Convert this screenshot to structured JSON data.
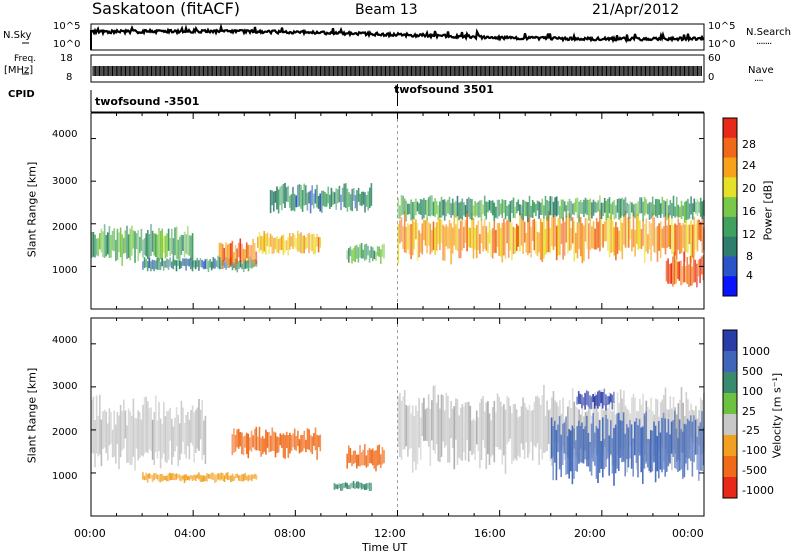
{
  "header": {
    "station": "Saskatoon (fitACF)",
    "beam": "Beam 13",
    "date": "21/Apr/2012"
  },
  "sky_panel": {
    "left_label": "N.Sky",
    "right_label": "N.Search",
    "right_dots": "·······",
    "left_ticks": [
      "10^5",
      "10^0"
    ],
    "right_ticks": [
      "10^5",
      "10^0"
    ]
  },
  "freq_panel": {
    "left_label_1": "Freq.",
    "left_label_2": "[MHz]",
    "right_label": "Nave",
    "right_dots": "····",
    "left_ticks": [
      "18",
      "8"
    ],
    "right_ticks": [
      "60",
      "0"
    ]
  },
  "cpid": {
    "label": "CPID",
    "segments": [
      {
        "name": "twofsound -3501",
        "start_hour": 0
      },
      {
        "name": "twofsound 3501",
        "start_hour": 12
      }
    ]
  },
  "chart_data": [
    {
      "type": "heatmap",
      "title": "Power",
      "ylabel": "Slant Range [km]",
      "xlabel": "",
      "xlim": [
        0,
        24
      ],
      "ylim": [
        0,
        4600
      ],
      "y_ticks": [
        1000,
        2000,
        3000,
        4000
      ],
      "colorbar": {
        "label": "Power [dB]",
        "ticks": [
          4,
          8,
          12,
          16,
          20,
          24,
          28
        ],
        "range": [
          0,
          32
        ],
        "colors": [
          "#0a14ff",
          "#2a55c8",
          "#2f7e6d",
          "#3fa060",
          "#7ac84a",
          "#e6e028",
          "#f7a21a",
          "#f06818",
          "#e82818"
        ]
      },
      "echo_bands": [
        {
          "from_hour": 0.0,
          "to_hour": 4.0,
          "range_km": [
            1100,
            1900
          ],
          "value": 14
        },
        {
          "from_hour": 2.0,
          "to_hour": 6.5,
          "range_km": [
            900,
            1200
          ],
          "value": 10
        },
        {
          "from_hour": 5.0,
          "to_hour": 6.5,
          "range_km": [
            1000,
            1600
          ],
          "value": 26
        },
        {
          "from_hour": 6.5,
          "to_hour": 9.0,
          "range_km": [
            1300,
            1800
          ],
          "value": 22
        },
        {
          "from_hour": 7.0,
          "to_hour": 11.0,
          "range_km": [
            2300,
            2900
          ],
          "value": 10
        },
        {
          "from_hour": 10.0,
          "to_hour": 11.5,
          "range_km": [
            1100,
            1500
          ],
          "value": 14
        },
        {
          "from_hour": 12.0,
          "to_hour": 24.0,
          "range_km": [
            1200,
            2200
          ],
          "value": 24
        },
        {
          "from_hour": 12.0,
          "to_hour": 24.0,
          "range_km": [
            2100,
            2600
          ],
          "value": 12
        },
        {
          "from_hour": 22.5,
          "to_hour": 24.0,
          "range_km": [
            500,
            1300
          ],
          "value": 28
        }
      ]
    },
    {
      "type": "heatmap",
      "title": "Velocity",
      "ylabel": "Slant Range [km]",
      "xlabel": "Time UT",
      "xlim": [
        0,
        24
      ],
      "ylim": [
        0,
        4600
      ],
      "x_ticks": [
        "00:00",
        "04:00",
        "08:00",
        "12:00",
        "16:00",
        "20:00",
        "00:00"
      ],
      "y_ticks": [
        1000,
        2000,
        3000,
        4000
      ],
      "colorbar": {
        "label": "Velocity [m s⁻¹]",
        "ticks": [
          "1000",
          "500",
          "100",
          "25",
          "-25",
          "-100",
          "-500",
          "-1000"
        ],
        "colors": [
          "#2a3ca8",
          "#3f66b8",
          "#3a8a70",
          "#6cc23e",
          "#c8c8c8",
          "#f2a020",
          "#f06a18",
          "#e82818"
        ]
      },
      "echo_bands": [
        {
          "from_hour": 0.0,
          "to_hour": 4.5,
          "range_km": [
            1200,
            2600
          ],
          "value": "ground"
        },
        {
          "from_hour": 2.0,
          "to_hour": 6.5,
          "range_km": [
            800,
            1000
          ],
          "value": -100
        },
        {
          "from_hour": 5.5,
          "to_hour": 9.0,
          "range_km": [
            1400,
            2000
          ],
          "value": -500
        },
        {
          "from_hour": 10.0,
          "to_hour": 11.5,
          "range_km": [
            1100,
            1600
          ],
          "value": -500
        },
        {
          "from_hour": 9.5,
          "to_hour": 11.0,
          "range_km": [
            600,
            800
          ],
          "value": 100
        },
        {
          "from_hour": 12.0,
          "to_hour": 24.0,
          "range_km": [
            1200,
            2800
          ],
          "value": "ground"
        },
        {
          "from_hour": 18.0,
          "to_hour": 24.0,
          "range_km": [
            900,
            2300
          ],
          "value": 500
        },
        {
          "from_hour": 19.0,
          "to_hour": 20.5,
          "range_km": [
            2500,
            2900
          ],
          "value": 1000
        }
      ]
    }
  ]
}
